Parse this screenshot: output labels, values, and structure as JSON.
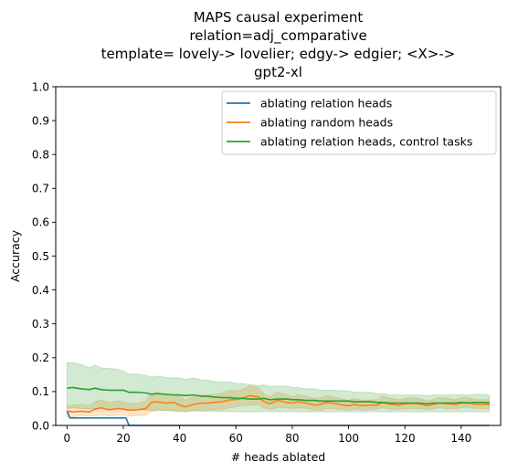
{
  "chart_data": {
    "type": "line",
    "title_lines": [
      "MAPS causal experiment",
      "relation=adj_comparative",
      "template= lovely-> lovelier; edgy-> edgier; <X>->",
      "gpt2-xl"
    ],
    "xlabel": "# heads ablated",
    "ylabel": "Accuracy",
    "xlim": [
      -4,
      154
    ],
    "ylim": [
      0,
      1.0
    ],
    "xticks": [
      0,
      20,
      40,
      60,
      80,
      100,
      120,
      140
    ],
    "yticks": [
      0.0,
      0.1,
      0.2,
      0.3,
      0.4,
      0.5,
      0.6,
      0.7,
      0.8,
      0.9,
      1.0
    ],
    "xtick_labels": [
      "0",
      "20",
      "40",
      "60",
      "80",
      "100",
      "120",
      "140"
    ],
    "ytick_labels": [
      "0.0",
      "0.1",
      "0.2",
      "0.3",
      "0.4",
      "0.5",
      "0.6",
      "0.7",
      "0.8",
      "0.9",
      "1.0"
    ],
    "legend_position": "top-right",
    "grid": false,
    "series": [
      {
        "name": "ablating relation heads",
        "color": "#1f77b4",
        "x": [
          0,
          1,
          2,
          21,
          22,
          150
        ],
        "y": [
          0.043,
          0.022,
          0.022,
          0.022,
          0.0,
          0.0
        ]
      },
      {
        "name": "ablating random heads",
        "color": "#ff7f0e",
        "x": [
          0,
          2,
          5,
          8,
          10,
          12,
          15,
          18,
          20,
          22,
          25,
          28,
          30,
          32,
          35,
          38,
          40,
          42,
          45,
          48,
          50,
          52,
          55,
          58,
          60,
          62,
          65,
          68,
          70,
          72,
          75,
          78,
          80,
          82,
          85,
          88,
          90,
          92,
          95,
          98,
          100,
          102,
          105,
          108,
          110,
          112,
          115,
          118,
          120,
          122,
          125,
          128,
          130,
          132,
          135,
          138,
          140,
          142,
          145,
          148,
          150
        ],
        "y": [
          0.043,
          0.04,
          0.042,
          0.04,
          0.048,
          0.052,
          0.046,
          0.05,
          0.048,
          0.045,
          0.046,
          0.05,
          0.068,
          0.07,
          0.066,
          0.068,
          0.06,
          0.055,
          0.062,
          0.066,
          0.066,
          0.068,
          0.07,
          0.076,
          0.076,
          0.08,
          0.088,
          0.084,
          0.07,
          0.064,
          0.074,
          0.068,
          0.066,
          0.07,
          0.066,
          0.06,
          0.062,
          0.068,
          0.065,
          0.06,
          0.058,
          0.062,
          0.058,
          0.06,
          0.06,
          0.068,
          0.062,
          0.06,
          0.064,
          0.065,
          0.064,
          0.058,
          0.062,
          0.066,
          0.064,
          0.062,
          0.066,
          0.068,
          0.062,
          0.062,
          0.062
        ],
        "band_lower": [
          0.025,
          0.025,
          0.028,
          0.027,
          0.028,
          0.03,
          0.028,
          0.03,
          0.03,
          0.028,
          0.028,
          0.03,
          0.04,
          0.045,
          0.045,
          0.042,
          0.04,
          0.04,
          0.042,
          0.045,
          0.045,
          0.046,
          0.048,
          0.052,
          0.055,
          0.058,
          0.06,
          0.06,
          0.052,
          0.048,
          0.052,
          0.052,
          0.05,
          0.052,
          0.05,
          0.045,
          0.045,
          0.05,
          0.05,
          0.046,
          0.045,
          0.048,
          0.045,
          0.046,
          0.048,
          0.052,
          0.048,
          0.046,
          0.05,
          0.05,
          0.05,
          0.046,
          0.05,
          0.052,
          0.05,
          0.05,
          0.052,
          0.054,
          0.05,
          0.05,
          0.05
        ],
        "band_upper": [
          0.06,
          0.06,
          0.062,
          0.058,
          0.07,
          0.075,
          0.068,
          0.072,
          0.07,
          0.065,
          0.066,
          0.072,
          0.095,
          0.098,
          0.09,
          0.092,
          0.085,
          0.075,
          0.085,
          0.09,
          0.09,
          0.092,
          0.095,
          0.105,
          0.102,
          0.106,
          0.118,
          0.112,
          0.092,
          0.085,
          0.098,
          0.09,
          0.085,
          0.092,
          0.086,
          0.08,
          0.082,
          0.088,
          0.084,
          0.078,
          0.074,
          0.08,
          0.074,
          0.076,
          0.076,
          0.086,
          0.08,
          0.076,
          0.08,
          0.082,
          0.08,
          0.072,
          0.076,
          0.082,
          0.08,
          0.076,
          0.082,
          0.084,
          0.076,
          0.076,
          0.076
        ],
        "band_color": "#ff7f0e"
      },
      {
        "name": "ablating relation heads, control tasks",
        "color": "#2ca02c",
        "x": [
          0,
          2,
          5,
          8,
          10,
          12,
          15,
          18,
          20,
          22,
          25,
          28,
          30,
          32,
          35,
          38,
          40,
          42,
          45,
          48,
          50,
          52,
          55,
          58,
          60,
          62,
          65,
          68,
          70,
          72,
          75,
          78,
          80,
          82,
          85,
          88,
          90,
          92,
          95,
          98,
          100,
          102,
          105,
          108,
          110,
          112,
          115,
          118,
          120,
          122,
          125,
          128,
          130,
          132,
          135,
          138,
          140,
          142,
          145,
          148,
          150
        ],
        "y": [
          0.11,
          0.112,
          0.108,
          0.106,
          0.11,
          0.106,
          0.104,
          0.104,
          0.104,
          0.098,
          0.098,
          0.096,
          0.092,
          0.094,
          0.092,
          0.09,
          0.09,
          0.088,
          0.09,
          0.086,
          0.086,
          0.084,
          0.082,
          0.082,
          0.08,
          0.08,
          0.078,
          0.078,
          0.08,
          0.076,
          0.078,
          0.078,
          0.076,
          0.076,
          0.074,
          0.074,
          0.072,
          0.072,
          0.072,
          0.072,
          0.072,
          0.07,
          0.07,
          0.07,
          0.068,
          0.068,
          0.066,
          0.066,
          0.066,
          0.066,
          0.066,
          0.064,
          0.066,
          0.066,
          0.066,
          0.066,
          0.068,
          0.066,
          0.068,
          0.068,
          0.066
        ],
        "band_lower": [
          0.05,
          0.052,
          0.05,
          0.048,
          0.05,
          0.05,
          0.048,
          0.048,
          0.05,
          0.046,
          0.046,
          0.046,
          0.044,
          0.045,
          0.044,
          0.043,
          0.043,
          0.042,
          0.044,
          0.042,
          0.042,
          0.042,
          0.041,
          0.041,
          0.04,
          0.04,
          0.04,
          0.04,
          0.042,
          0.04,
          0.041,
          0.041,
          0.04,
          0.04,
          0.04,
          0.04,
          0.04,
          0.04,
          0.04,
          0.04,
          0.04,
          0.04,
          0.04,
          0.04,
          0.04,
          0.04,
          0.04,
          0.04,
          0.04,
          0.04,
          0.04,
          0.04,
          0.04,
          0.04,
          0.04,
          0.04,
          0.04,
          0.04,
          0.04,
          0.04,
          0.04
        ],
        "band_upper": [
          0.185,
          0.186,
          0.18,
          0.17,
          0.178,
          0.17,
          0.168,
          0.166,
          0.16,
          0.152,
          0.152,
          0.148,
          0.142,
          0.146,
          0.142,
          0.14,
          0.14,
          0.136,
          0.14,
          0.134,
          0.134,
          0.13,
          0.128,
          0.128,
          0.124,
          0.124,
          0.12,
          0.118,
          0.12,
          0.114,
          0.116,
          0.116,
          0.112,
          0.112,
          0.108,
          0.108,
          0.104,
          0.104,
          0.104,
          0.102,
          0.102,
          0.098,
          0.098,
          0.098,
          0.094,
          0.094,
          0.09,
          0.09,
          0.09,
          0.09,
          0.09,
          0.088,
          0.09,
          0.09,
          0.09,
          0.09,
          0.092,
          0.09,
          0.092,
          0.092,
          0.09
        ],
        "band_color": "#2ca02c"
      }
    ]
  }
}
